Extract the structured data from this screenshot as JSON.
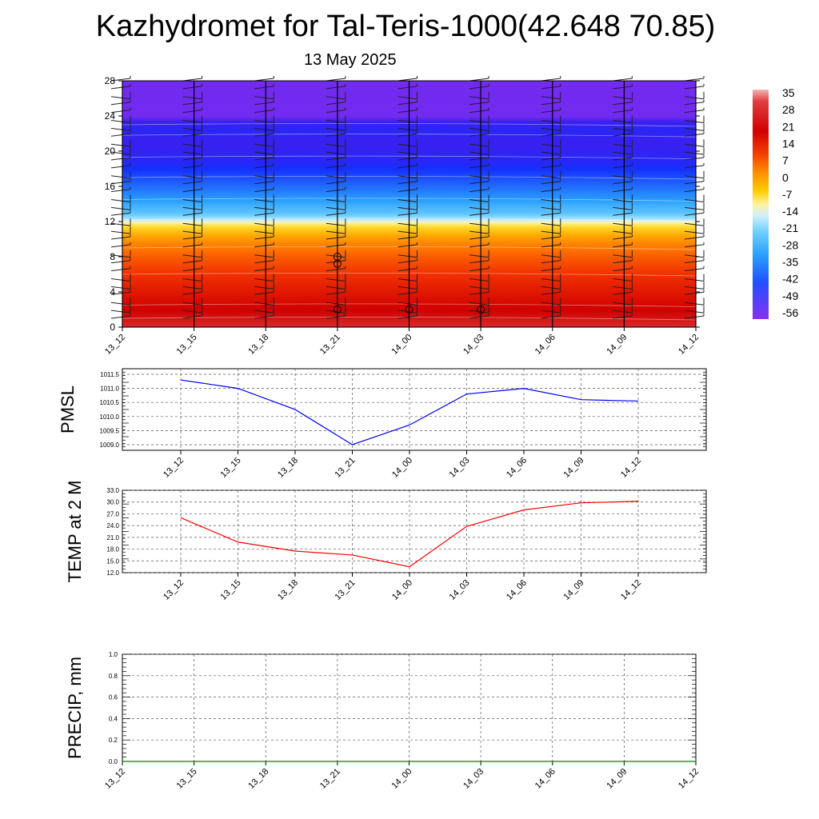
{
  "title": "Kazhydromet for Tal-Teris-1000(42.648 70.85)",
  "subtitle": "13 May 2025",
  "colorbar": {
    "labels": [
      "35",
      "28",
      "21",
      "14",
      "7",
      "0",
      "-7",
      "-14",
      "-21",
      "-28",
      "-35",
      "-42",
      "-49",
      "-56"
    ]
  },
  "chart_data": [
    {
      "type": "heatmap",
      "name": "cross-section",
      "x_ticks": [
        "13_12",
        "13_15",
        "13_18",
        "13_21",
        "14_00",
        "14_03",
        "14_06",
        "14_09",
        "14_12"
      ],
      "y_ticks": [
        "0",
        "4",
        "8",
        "12",
        "16",
        "20",
        "24",
        "28"
      ],
      "ylim": [
        0,
        28
      ],
      "bands": [
        {
          "y": 0,
          "value": 28
        },
        {
          "y": 2,
          "value": 24
        },
        {
          "y": 4,
          "value": 20
        },
        {
          "y": 6,
          "value": 16
        },
        {
          "y": 8,
          "value": 12
        },
        {
          "y": 9.5,
          "value": 8
        },
        {
          "y": 10.5,
          "value": 4
        },
        {
          "y": 11.5,
          "value": -2
        },
        {
          "y": 12,
          "value": -12
        },
        {
          "y": 12.3,
          "value": -18
        },
        {
          "y": 13,
          "value": -24
        },
        {
          "y": 14,
          "value": -28
        },
        {
          "y": 15,
          "value": -33
        },
        {
          "y": 16,
          "value": -38
        },
        {
          "y": 17,
          "value": -43
        },
        {
          "y": 18,
          "value": -48
        },
        {
          "y": 19,
          "value": -52
        },
        {
          "y": 21,
          "value": -55
        },
        {
          "y": 22.5,
          "value": -52
        },
        {
          "y": 23.5,
          "value": -56
        },
        {
          "y": 24,
          "value": -60
        },
        {
          "y": 28,
          "value": -60
        }
      ],
      "colors": {
        "low": "#7a2ff0",
        "high": "#cc0000"
      }
    },
    {
      "type": "line",
      "ylabel": "PMSL",
      "categories": [
        "13_12",
        "13_15",
        "13_18",
        "13_21",
        "14_00",
        "14_03",
        "14_06",
        "14_09",
        "14_12"
      ],
      "y_ticks": [
        "1009.0",
        "1009.5",
        "1010.0",
        "1010.5",
        "1011.0",
        "1011.5"
      ],
      "ylim": [
        1008.8,
        1011.7
      ],
      "series": [
        {
          "values": [
            1011.3,
            1011.0,
            1010.25,
            1009.0,
            1009.7,
            1010.8,
            1011.0,
            1010.6,
            1010.55
          ],
          "color": "#0000ff"
        }
      ]
    },
    {
      "type": "line",
      "ylabel": "TEMP at 2 M",
      "categories": [
        "13_12",
        "13_15",
        "13_18",
        "13_21",
        "14_00",
        "14_03",
        "14_06",
        "14_09",
        "14_12"
      ],
      "y_ticks": [
        "12.0",
        "15.0",
        "18.0",
        "21.0",
        "24.0",
        "27.0",
        "30.0",
        "33.0"
      ],
      "ylim": [
        12,
        33
      ],
      "series": [
        {
          "values": [
            26.0,
            19.8,
            17.5,
            16.5,
            13.5,
            23.8,
            28.0,
            29.8,
            30.2
          ],
          "color": "#ff0000"
        }
      ]
    },
    {
      "type": "line",
      "ylabel": "PRECIP, mm",
      "categories": [
        "13_12",
        "13_15",
        "13_18",
        "13_21",
        "14_00",
        "14_03",
        "14_06",
        "14_09",
        "14_12"
      ],
      "y_ticks": [
        "0.0",
        "0.2",
        "0.4",
        "0.6",
        "0.8",
        "1.0"
      ],
      "ylim": [
        0,
        1
      ],
      "series": [
        {
          "values": [
            0,
            0,
            0,
            0,
            0,
            0,
            0,
            0,
            0
          ],
          "color": "#008000"
        }
      ]
    }
  ]
}
